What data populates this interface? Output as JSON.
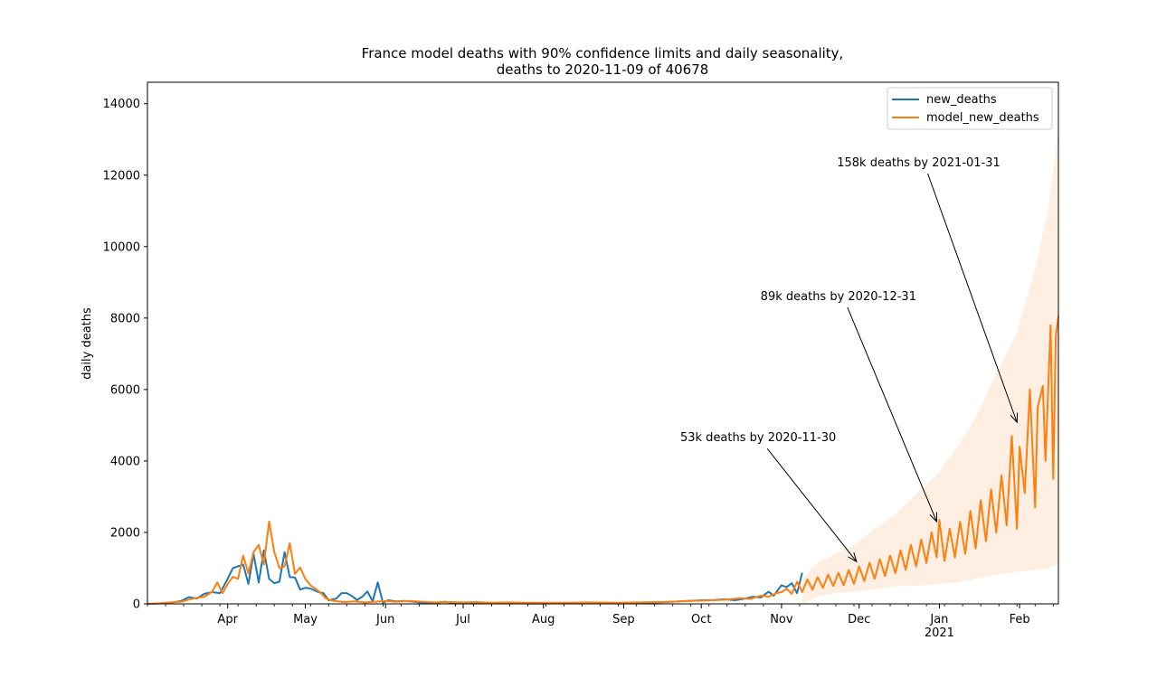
{
  "chart_data": {
    "type": "line",
    "title_line1": "France model deaths with 90% confidence limits and daily seasonality,",
    "title_line2": "deaths to 2020-11-09 of 40678",
    "ylabel": "daily deaths",
    "xlabel": "",
    "xlim": [
      "2020-03-01",
      "2021-02-16"
    ],
    "ylim": [
      0,
      14600
    ],
    "yticks": [
      0,
      2000,
      4000,
      6000,
      8000,
      10000,
      12000,
      14000
    ],
    "xticks": [
      {
        "date": "2020-04-01",
        "label": "Apr"
      },
      {
        "date": "2020-05-01",
        "label": "May"
      },
      {
        "date": "2020-06-01",
        "label": "Jun"
      },
      {
        "date": "2020-07-01",
        "label": "Jul"
      },
      {
        "date": "2020-08-01",
        "label": "Aug"
      },
      {
        "date": "2020-09-01",
        "label": "Sep"
      },
      {
        "date": "2020-10-01",
        "label": "Oct"
      },
      {
        "date": "2020-11-01",
        "label": "Nov"
      },
      {
        "date": "2020-12-01",
        "label": "Dec"
      },
      {
        "date": "2021-01-01",
        "label": "Jan",
        "sublabel": "2021"
      },
      {
        "date": "2021-02-01",
        "label": "Feb"
      }
    ],
    "legend": {
      "placement": "top-right",
      "entries": [
        {
          "name": "new_deaths",
          "color": "#1f77b4"
        },
        {
          "name": "model_new_deaths",
          "color": "#ff7f0e"
        }
      ]
    },
    "annotations": [
      {
        "text": "53k deaths by 2020-11-30",
        "point": {
          "date": "2020-11-30",
          "y": 1180
        },
        "text_at": {
          "date": "2020-10-23",
          "y": 4550
        }
      },
      {
        "text": "89k deaths by 2020-12-31",
        "point": {
          "date": "2020-12-31",
          "y": 2300
        },
        "text_at": {
          "date": "2020-11-23",
          "y": 8500
        }
      },
      {
        "text": "158k deaths by 2021-01-31",
        "point": {
          "date": "2021-01-31",
          "y": 5080
        },
        "text_at": {
          "date": "2020-12-24",
          "y": 12250
        }
      }
    ],
    "series": [
      {
        "name": "new_deaths",
        "color": "#1f77b4",
        "points": [
          [
            "2020-03-01",
            0
          ],
          [
            "2020-03-05",
            10
          ],
          [
            "2020-03-10",
            30
          ],
          [
            "2020-03-14",
            80
          ],
          [
            "2020-03-17",
            190
          ],
          [
            "2020-03-20",
            150
          ],
          [
            "2020-03-23",
            280
          ],
          [
            "2020-03-26",
            330
          ],
          [
            "2020-03-29",
            300
          ],
          [
            "2020-04-01",
            700
          ],
          [
            "2020-04-03",
            1000
          ],
          [
            "2020-04-05",
            1050
          ],
          [
            "2020-04-07",
            1100
          ],
          [
            "2020-04-09",
            560
          ],
          [
            "2020-04-11",
            1400
          ],
          [
            "2020-04-13",
            600
          ],
          [
            "2020-04-15",
            1500
          ],
          [
            "2020-04-17",
            700
          ],
          [
            "2020-04-19",
            580
          ],
          [
            "2020-04-21",
            620
          ],
          [
            "2020-04-23",
            1450
          ],
          [
            "2020-04-25",
            750
          ],
          [
            "2020-04-27",
            740
          ],
          [
            "2020-04-29",
            400
          ],
          [
            "2020-05-01",
            450
          ],
          [
            "2020-05-03",
            430
          ],
          [
            "2020-05-06",
            330
          ],
          [
            "2020-05-08",
            300
          ],
          [
            "2020-05-10",
            100
          ],
          [
            "2020-05-13",
            150
          ],
          [
            "2020-05-15",
            300
          ],
          [
            "2020-05-17",
            300
          ],
          [
            "2020-05-19",
            220
          ],
          [
            "2020-05-21",
            110
          ],
          [
            "2020-05-23",
            200
          ],
          [
            "2020-05-25",
            350
          ],
          [
            "2020-05-27",
            70
          ],
          [
            "2020-05-29",
            600
          ],
          [
            "2020-05-31",
            30
          ],
          [
            "2020-06-02",
            100
          ],
          [
            "2020-06-05",
            70
          ],
          [
            "2020-06-08",
            80
          ],
          [
            "2020-06-12",
            60
          ],
          [
            "2020-06-15",
            30
          ],
          [
            "2020-06-19",
            20
          ],
          [
            "2020-06-24",
            60
          ],
          [
            "2020-06-28",
            10
          ],
          [
            "2020-07-02",
            20
          ],
          [
            "2020-07-08",
            40
          ],
          [
            "2020-07-14",
            10
          ],
          [
            "2020-07-20",
            30
          ],
          [
            "2020-07-26",
            10
          ],
          [
            "2020-08-01",
            10
          ],
          [
            "2020-08-10",
            20
          ],
          [
            "2020-08-20",
            20
          ],
          [
            "2020-08-30",
            20
          ],
          [
            "2020-09-06",
            30
          ],
          [
            "2020-09-14",
            40
          ],
          [
            "2020-09-20",
            60
          ],
          [
            "2020-09-26",
            80
          ],
          [
            "2020-10-01",
            100
          ],
          [
            "2020-10-06",
            110
          ],
          [
            "2020-10-10",
            130
          ],
          [
            "2020-10-14",
            100
          ],
          [
            "2020-10-18",
            150
          ],
          [
            "2020-10-21",
            200
          ],
          [
            "2020-10-24",
            180
          ],
          [
            "2020-10-27",
            340
          ],
          [
            "2020-10-29",
            230
          ],
          [
            "2020-11-01",
            520
          ],
          [
            "2020-11-03",
            470
          ],
          [
            "2020-11-05",
            580
          ],
          [
            "2020-11-07",
            300
          ],
          [
            "2020-11-09",
            870
          ]
        ]
      },
      {
        "name": "model_new_deaths",
        "color": "#ff7f0e",
        "points": [
          [
            "2020-03-01",
            0
          ],
          [
            "2020-03-05",
            10
          ],
          [
            "2020-03-10",
            40
          ],
          [
            "2020-03-14",
            60
          ],
          [
            "2020-03-17",
            120
          ],
          [
            "2020-03-20",
            170
          ],
          [
            "2020-03-23",
            200
          ],
          [
            "2020-03-26",
            340
          ],
          [
            "2020-03-28",
            600
          ],
          [
            "2020-03-30",
            300
          ],
          [
            "2020-04-01",
            560
          ],
          [
            "2020-04-03",
            760
          ],
          [
            "2020-04-05",
            700
          ],
          [
            "2020-04-07",
            1350
          ],
          [
            "2020-04-09",
            850
          ],
          [
            "2020-04-11",
            1450
          ],
          [
            "2020-04-13",
            1650
          ],
          [
            "2020-04-15",
            1100
          ],
          [
            "2020-04-17",
            2310
          ],
          [
            "2020-04-19",
            1450
          ],
          [
            "2020-04-21",
            1000
          ],
          [
            "2020-04-23",
            1050
          ],
          [
            "2020-04-25",
            1700
          ],
          [
            "2020-04-27",
            840
          ],
          [
            "2020-04-29",
            1020
          ],
          [
            "2020-05-01",
            700
          ],
          [
            "2020-05-03",
            520
          ],
          [
            "2020-05-05",
            420
          ],
          [
            "2020-05-07",
            300
          ],
          [
            "2020-05-09",
            150
          ],
          [
            "2020-05-12",
            80
          ],
          [
            "2020-05-16",
            50
          ],
          [
            "2020-05-20",
            70
          ],
          [
            "2020-05-24",
            40
          ],
          [
            "2020-05-28",
            60
          ],
          [
            "2020-06-01",
            80
          ],
          [
            "2020-06-05",
            60
          ],
          [
            "2020-06-10",
            80
          ],
          [
            "2020-06-15",
            60
          ],
          [
            "2020-06-20",
            40
          ],
          [
            "2020-06-25",
            50
          ],
          [
            "2020-07-01",
            40
          ],
          [
            "2020-07-06",
            50
          ],
          [
            "2020-07-12",
            30
          ],
          [
            "2020-07-18",
            40
          ],
          [
            "2020-07-25",
            30
          ],
          [
            "2020-08-01",
            30
          ],
          [
            "2020-08-10",
            30
          ],
          [
            "2020-08-20",
            40
          ],
          [
            "2020-08-30",
            30
          ],
          [
            "2020-09-06",
            40
          ],
          [
            "2020-09-14",
            50
          ],
          [
            "2020-09-20",
            60
          ],
          [
            "2020-09-26",
            80
          ],
          [
            "2020-10-01",
            90
          ],
          [
            "2020-10-06",
            100
          ],
          [
            "2020-10-11",
            120
          ],
          [
            "2020-10-16",
            160
          ],
          [
            "2020-10-20",
            140
          ],
          [
            "2020-10-24",
            230
          ],
          [
            "2020-10-27",
            200
          ],
          [
            "2020-10-30",
            300
          ],
          [
            "2020-11-01",
            330
          ],
          [
            "2020-11-03",
            420
          ],
          [
            "2020-11-05",
            280
          ],
          [
            "2020-11-07",
            620
          ],
          [
            "2020-11-09",
            330
          ],
          [
            "2020-11-11",
            680
          ],
          [
            "2020-11-13",
            400
          ],
          [
            "2020-11-15",
            750
          ],
          [
            "2020-11-17",
            450
          ],
          [
            "2020-11-19",
            820
          ],
          [
            "2020-11-21",
            500
          ],
          [
            "2020-11-23",
            870
          ],
          [
            "2020-11-25",
            520
          ],
          [
            "2020-11-27",
            950
          ],
          [
            "2020-11-29",
            560
          ],
          [
            "2020-12-01",
            1050
          ],
          [
            "2020-12-03",
            640
          ],
          [
            "2020-12-05",
            1150
          ],
          [
            "2020-12-07",
            700
          ],
          [
            "2020-12-09",
            1250
          ],
          [
            "2020-12-11",
            780
          ],
          [
            "2020-12-13",
            1350
          ],
          [
            "2020-12-15",
            860
          ],
          [
            "2020-12-17",
            1500
          ],
          [
            "2020-12-19",
            950
          ],
          [
            "2020-12-21",
            1650
          ],
          [
            "2020-12-23",
            1050
          ],
          [
            "2020-12-25",
            1800
          ],
          [
            "2020-12-27",
            1150
          ],
          [
            "2020-12-29",
            2000
          ],
          [
            "2020-12-31",
            1300
          ],
          [
            "2021-01-01",
            2350
          ],
          [
            "2021-01-03",
            1200
          ],
          [
            "2021-01-05",
            2100
          ],
          [
            "2021-01-07",
            1300
          ],
          [
            "2021-01-09",
            2300
          ],
          [
            "2021-01-11",
            1400
          ],
          [
            "2021-01-13",
            2600
          ],
          [
            "2021-01-15",
            1550
          ],
          [
            "2021-01-17",
            2900
          ],
          [
            "2021-01-19",
            1750
          ],
          [
            "2021-01-21",
            3200
          ],
          [
            "2021-01-23",
            2000
          ],
          [
            "2021-01-25",
            3600
          ],
          [
            "2021-01-27",
            2200
          ],
          [
            "2021-01-29",
            4700
          ],
          [
            "2021-01-31",
            2100
          ],
          [
            "2021-02-01",
            4400
          ],
          [
            "2021-02-03",
            3100
          ],
          [
            "2021-02-05",
            6000
          ],
          [
            "2021-02-07",
            2700
          ],
          [
            "2021-02-08",
            5500
          ],
          [
            "2021-02-10",
            6100
          ],
          [
            "2021-02-11",
            4000
          ],
          [
            "2021-02-13",
            7800
          ],
          [
            "2021-02-14",
            3500
          ],
          [
            "2021-02-15",
            7500
          ],
          [
            "2021-02-16",
            8050
          ]
        ]
      }
    ],
    "confidence_band": {
      "label": "90% confidence limits",
      "color": "#ff7f0e",
      "points": [
        [
          "2020-11-09",
          0,
          700
        ],
        [
          "2020-11-15",
          200,
          1150
        ],
        [
          "2020-11-22",
          300,
          1400
        ],
        [
          "2020-11-30",
          350,
          1700
        ],
        [
          "2020-12-07",
          400,
          2100
        ],
        [
          "2020-12-15",
          500,
          2500
        ],
        [
          "2020-12-22",
          500,
          3000
        ],
        [
          "2020-12-31",
          550,
          3600
        ],
        [
          "2021-01-07",
          600,
          4300
        ],
        [
          "2021-01-15",
          700,
          5200
        ],
        [
          "2021-01-22",
          800,
          6300
        ],
        [
          "2021-01-31",
          900,
          7600
        ],
        [
          "2021-02-07",
          950,
          9400
        ],
        [
          "2021-02-12",
          1000,
          11000
        ],
        [
          "2021-02-16",
          1100,
          13200
        ]
      ]
    }
  }
}
